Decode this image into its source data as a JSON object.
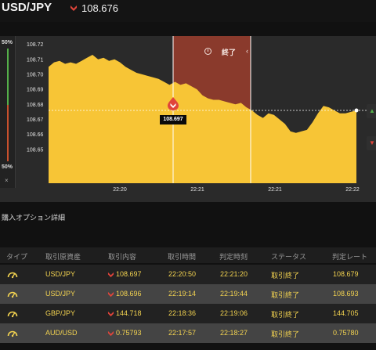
{
  "header": {
    "pair": "USD/JPY",
    "rate": "108.676",
    "rate_direction_icon": "down-arrow-icon"
  },
  "colors": {
    "area_fill": "#f7c536",
    "expired_zone": "#8a3a2c",
    "down_red": "#e0443a",
    "table_text": "#f2d250",
    "up_green": "#55b04a"
  },
  "sidebar": {
    "top_percent": "50%",
    "bottom_percent": "50%",
    "close_label": "×"
  },
  "chart": {
    "expired_label": "終了",
    "marker_price": "108.697",
    "current_price": "108.676"
  },
  "chart_data": {
    "type": "area",
    "x_ticks": [
      "22:20",
      "22:21",
      "22:21",
      "22:22"
    ],
    "y_ticks": [
      "108.72",
      "108.71",
      "108.70",
      "108.69",
      "108.68",
      "108.67",
      "108.66",
      "108.65"
    ],
    "ylim": [
      108.64,
      108.725
    ],
    "current_line": 108.676,
    "series": [
      {
        "values": [
          108.705,
          108.708,
          108.709,
          108.707,
          108.708,
          108.707,
          108.709,
          108.711,
          108.713,
          108.71,
          108.711,
          108.709,
          108.71,
          108.708,
          108.705,
          108.703,
          108.701,
          108.7,
          108.699,
          108.698,
          108.697,
          108.695,
          108.693,
          108.695,
          108.693,
          108.694,
          108.692,
          108.69,
          108.686,
          108.684,
          108.683,
          108.683,
          108.682,
          108.681,
          108.68,
          108.681,
          108.678,
          108.676,
          108.673,
          108.671,
          108.674,
          108.673,
          108.67,
          108.667,
          108.662,
          108.661,
          108.662,
          108.663,
          108.668,
          108.674,
          108.679,
          108.678,
          108.676,
          108.674,
          108.674,
          108.675,
          108.676
        ]
      }
    ]
  },
  "details": {
    "title": "購入オプション詳細",
    "columns": [
      "タイプ",
      "取引原資産",
      "取引内容",
      "取引時間",
      "判定時刻",
      "ステータス",
      "判定レート"
    ],
    "rows": [
      {
        "asset": "USD/JPY",
        "rate": "108.697",
        "time": "22:20:50",
        "judge": "22:21:20",
        "status": "取引終了",
        "judge_rate": "108.679"
      },
      {
        "asset": "USD/JPY",
        "rate": "108.696",
        "time": "22:19:14",
        "judge": "22:19:44",
        "status": "取引終了",
        "judge_rate": "108.693"
      },
      {
        "asset": "GBP/JPY",
        "rate": "144.718",
        "time": "22:18:36",
        "judge": "22:19:06",
        "status": "取引終了",
        "judge_rate": "144.705"
      },
      {
        "asset": "AUD/USD",
        "rate": "0.75793",
        "time": "22:17:57",
        "judge": "22:18:27",
        "status": "取引終了",
        "judge_rate": "0.75780"
      }
    ]
  }
}
